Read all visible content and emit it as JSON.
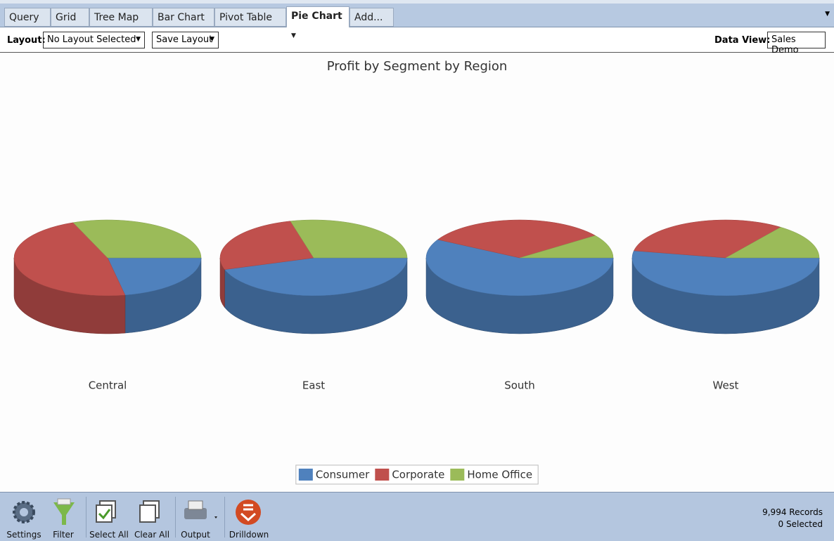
{
  "tabs": [
    "Query",
    "Grid",
    "Tree Map",
    "Bar Chart",
    "Pivot Table",
    "Pie Chart",
    "Add..."
  ],
  "layout_bar": {
    "layout_label": "Layout:",
    "layout_select": "No Layout Selected",
    "save_select": "Save Layout",
    "data_view_label": "Data View:",
    "data_view": "Sales Demo"
  },
  "chart_data": {
    "type": "pie",
    "title": "Profit by Segment by Region",
    "categories": [
      "Central",
      "East",
      "South",
      "West"
    ],
    "series": [
      {
        "name": "Consumer",
        "color": "#4f81bd",
        "values": [
          22,
          45,
          58,
          53
        ]
      },
      {
        "name": "Corporate",
        "color": "#c0504d",
        "values": [
          47,
          26,
          32,
          32
        ]
      },
      {
        "name": "Home Office",
        "color": "#9bbb59",
        "values": [
          31,
          29,
          10,
          15
        ]
      }
    ],
    "legend": "bottom"
  },
  "toolbar": {
    "buttons": [
      "Settings",
      "Filter",
      "Select All",
      "Clear All",
      "Output",
      "Drilldown"
    ],
    "records": "9,994 Records",
    "selected": "0 Selected"
  }
}
